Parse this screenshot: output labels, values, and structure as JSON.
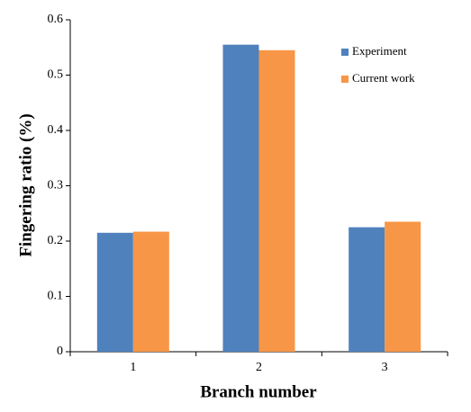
{
  "chart_data": {
    "type": "bar",
    "x_label": "Branch number",
    "y_label": "Fingering ratio (%)",
    "categories": [
      "1",
      "2",
      "3"
    ],
    "series": [
      {
        "name": "Experiment",
        "color": "#4f81bd",
        "values": [
          0.215,
          0.555,
          0.225
        ]
      },
      {
        "name": "Current work",
        "color": "#f79646",
        "values": [
          0.217,
          0.545,
          0.235
        ]
      }
    ],
    "ylim": [
      0,
      0.6
    ],
    "yticks": [
      0,
      0.1,
      0.2,
      0.3,
      0.4,
      0.5,
      0.6
    ],
    "legend": "upper right"
  }
}
